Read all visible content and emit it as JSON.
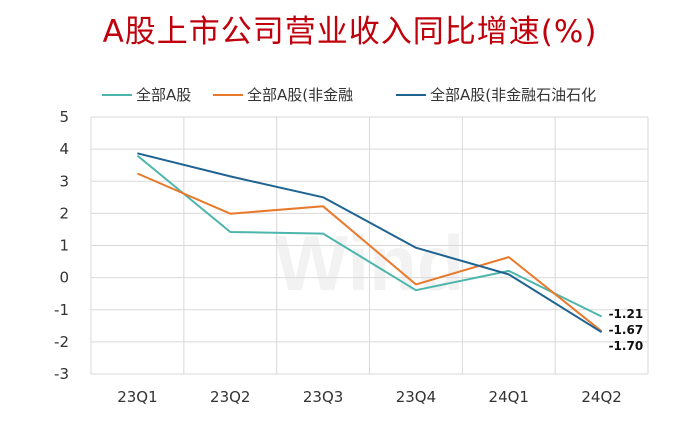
{
  "chart_data": {
    "type": "line",
    "title": "A股上市公司营业收入同比增速(%)",
    "watermark": "Wind",
    "categories": [
      "23Q1",
      "23Q2",
      "23Q3",
      "23Q4",
      "24Q1",
      "24Q2"
    ],
    "ylim": [
      -3,
      5
    ],
    "yticks": [
      5,
      4,
      3,
      2,
      1,
      0,
      -1,
      -2,
      -3
    ],
    "grid": true,
    "legend_position": "top",
    "series": [
      {
        "name": "全部A股",
        "color": "#4db6ac",
        "values": [
          3.8,
          1.42,
          1.37,
          -0.39,
          0.21,
          -1.21
        ]
      },
      {
        "name": "全部A股(非金融",
        "color": "#e8792b",
        "values": [
          3.24,
          1.99,
          2.22,
          -0.21,
          0.64,
          -1.67
        ]
      },
      {
        "name": "全部A股(非金融石油石化",
        "color": "#1f6391",
        "values": [
          3.87,
          3.15,
          2.5,
          0.93,
          0.1,
          -1.7
        ]
      }
    ],
    "end_labels": [
      "-1.21",
      "-1.67",
      "-1.70"
    ]
  }
}
